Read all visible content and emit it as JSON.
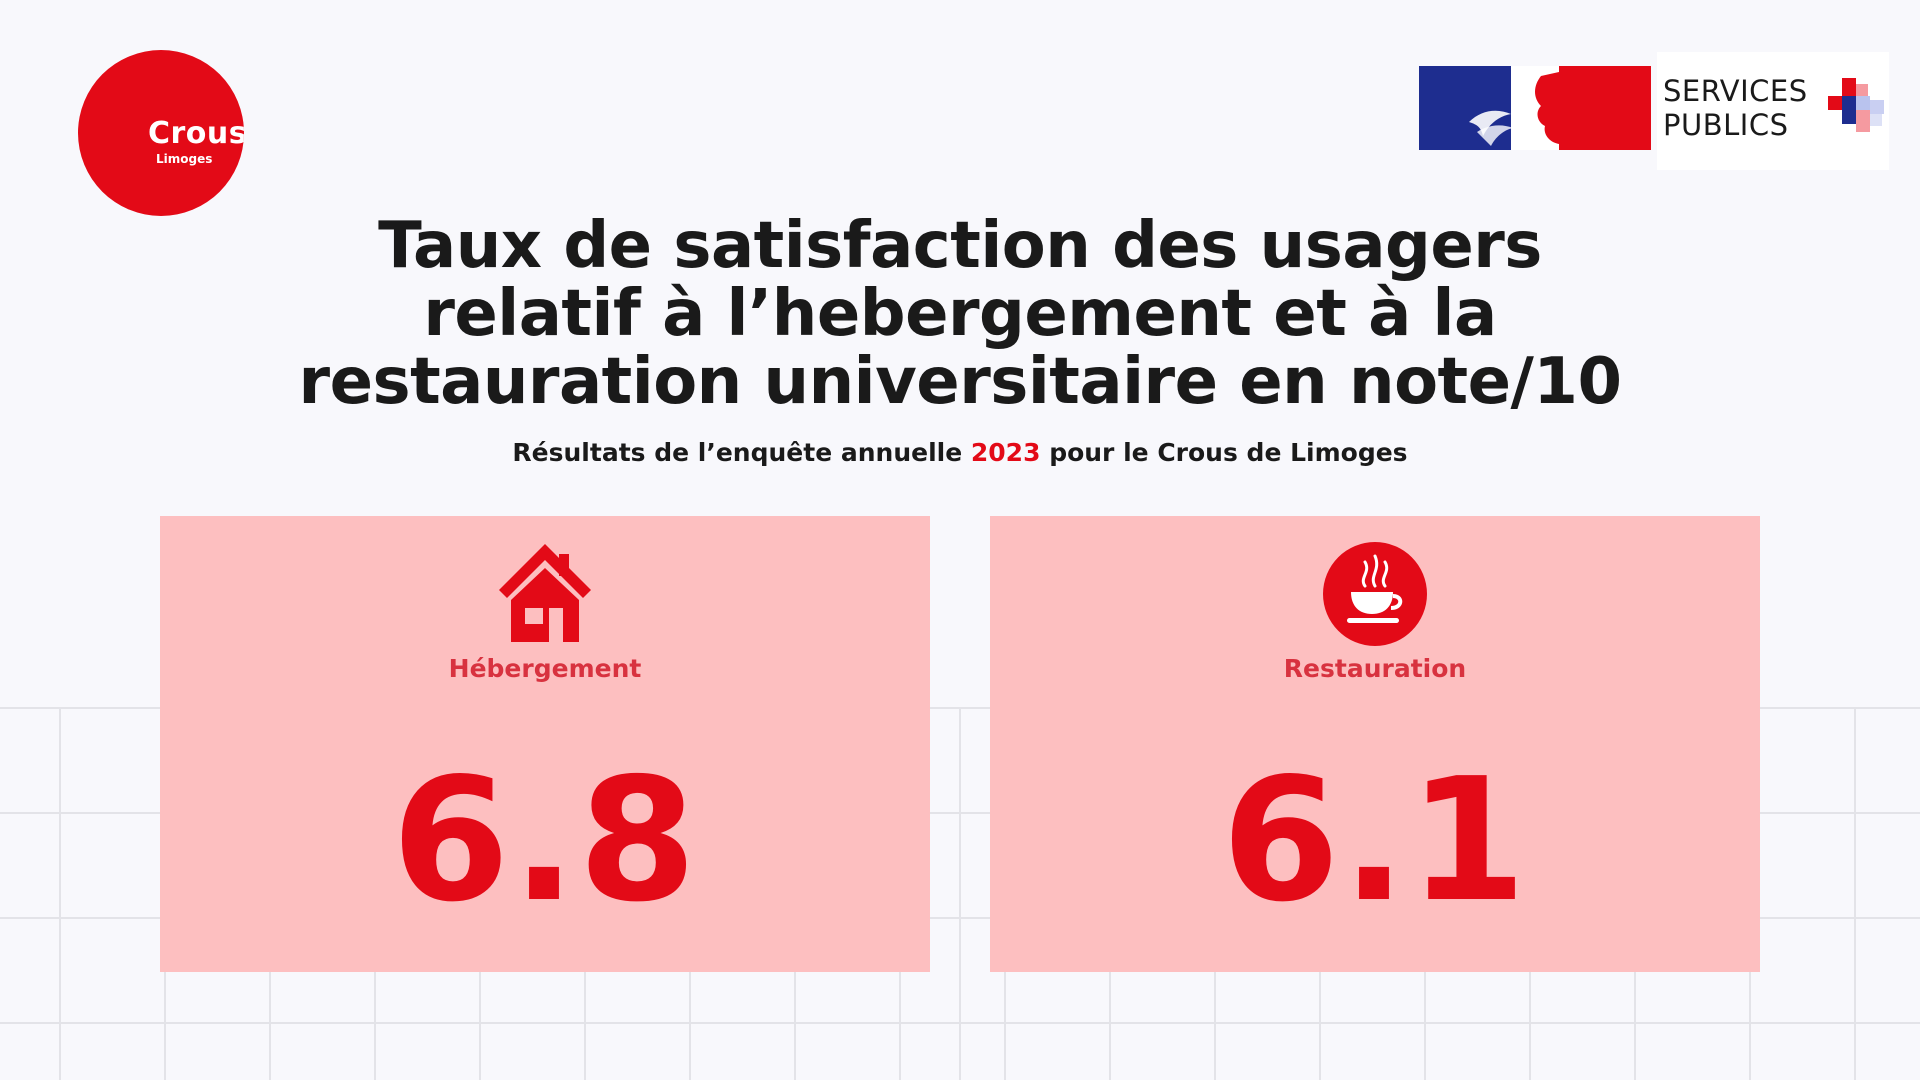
{
  "logo": {
    "name": "Crous",
    "city": "Limoges"
  },
  "services_publics": {
    "line1": "SERVICES",
    "line2": "PUBLICS"
  },
  "title": {
    "line1": "Taux de satisfaction des usagers",
    "line2": "relatif à l’hebergement et à la",
    "line3": "restauration universitaire en note/10"
  },
  "subtitle": {
    "before": "Résultats de l’enquête annuelle ",
    "year": "2023",
    "after": " pour le Crous de Limoges"
  },
  "cards": [
    {
      "label": "Hébergement",
      "value": "6.8",
      "icon": "house-icon"
    },
    {
      "label": "Restauration",
      "value": "6.1",
      "icon": "coffee-cup-icon"
    }
  ],
  "colors": {
    "brand_red": "#e30a17",
    "card_bg": "#fdbfc0",
    "label_red": "#d8323f",
    "rf_blue": "#1e2d8f"
  }
}
